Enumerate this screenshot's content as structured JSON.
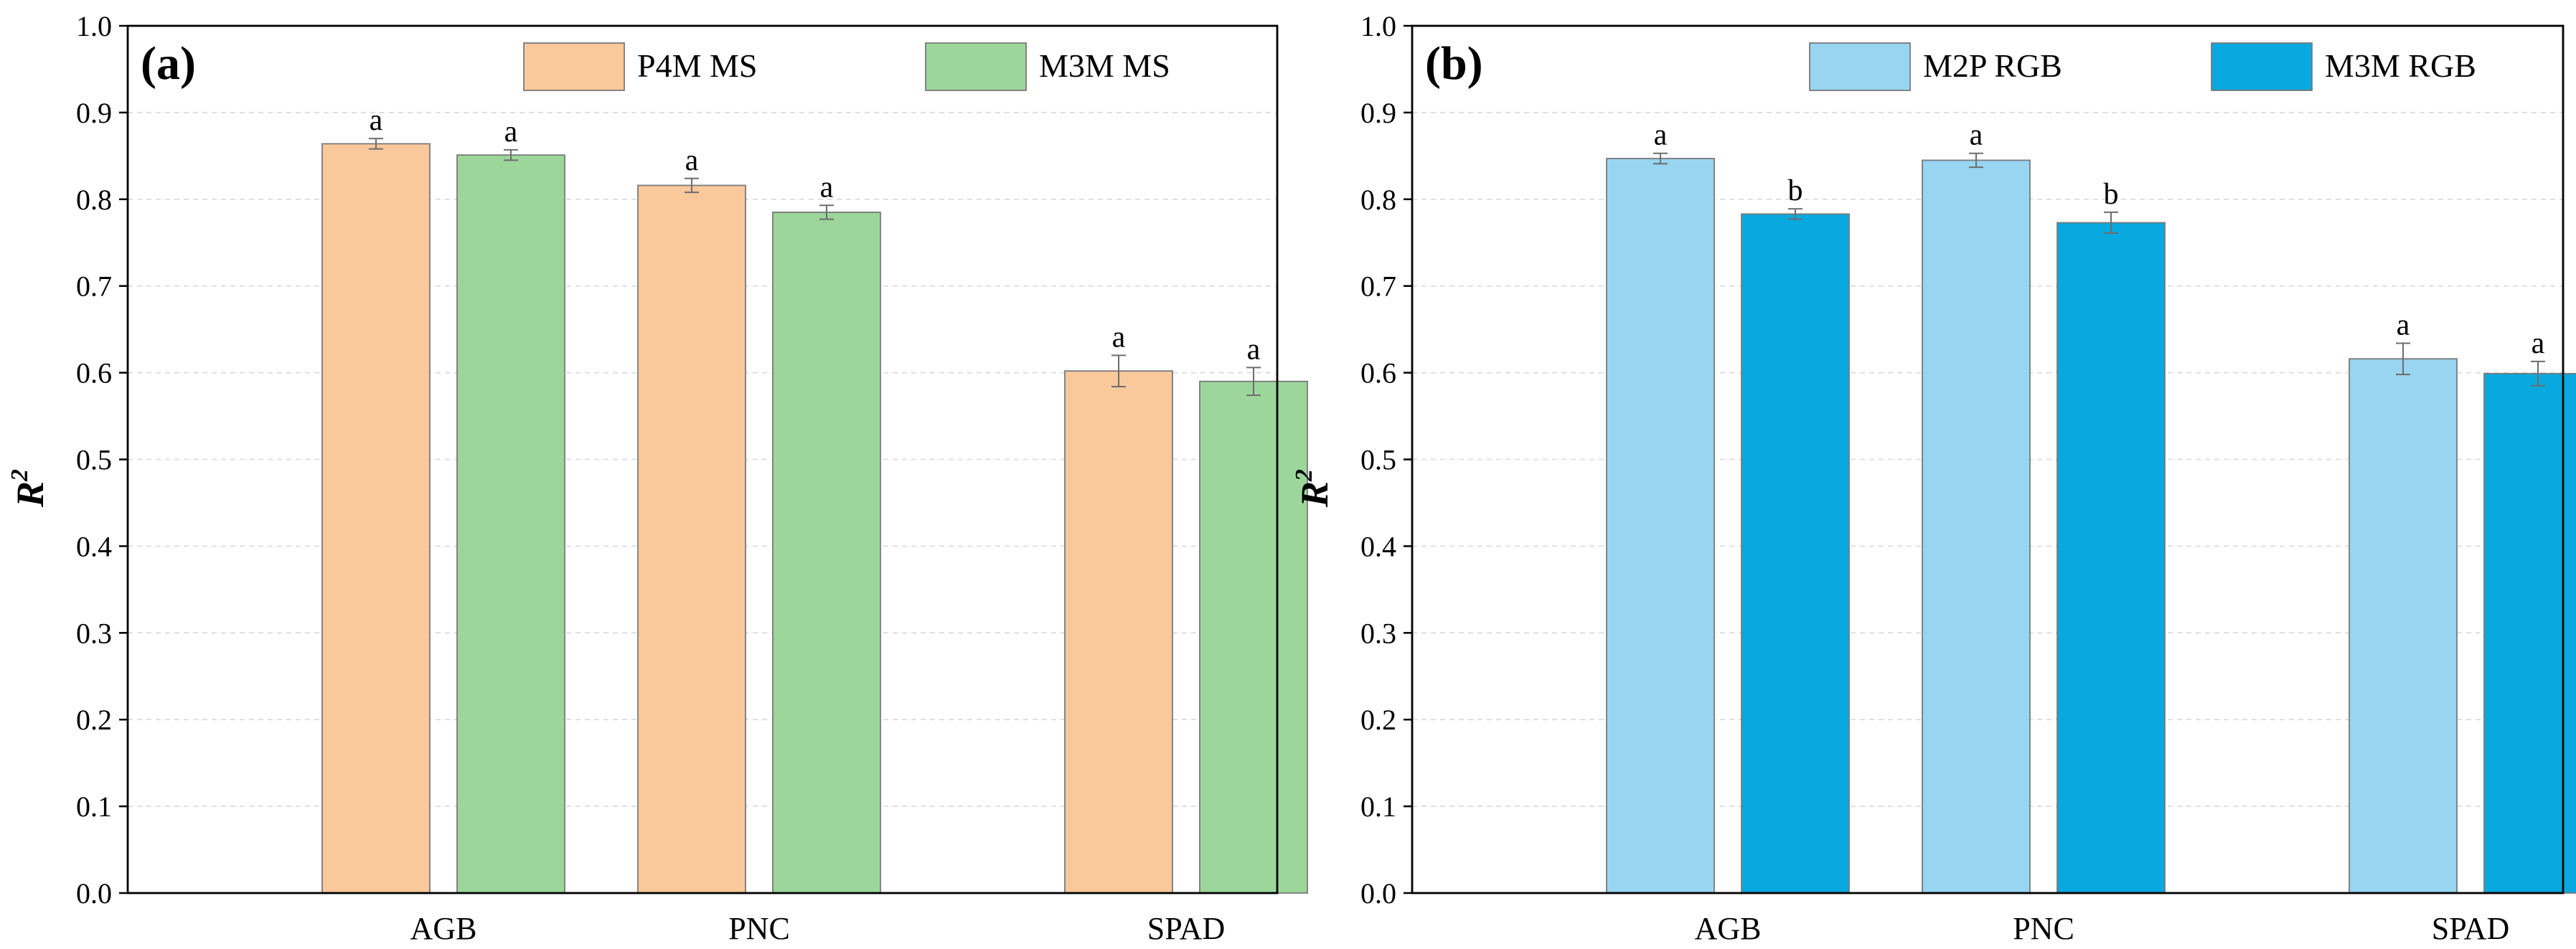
{
  "chart_data": [
    {
      "type": "bar",
      "panel_label": "(a)",
      "categories": [
        "AGB",
        "PNC",
        "SPAD"
      ],
      "ylabel": "R",
      "ylabel_superscript": "2",
      "ylim": [
        0.0,
        1.0
      ],
      "yticks": [
        "0.0",
        "0.1",
        "0.2",
        "0.3",
        "0.4",
        "0.5",
        "0.6",
        "0.7",
        "0.8",
        "0.9",
        "1.0"
      ],
      "grid": true,
      "legend_position": "top-right",
      "series": [
        {
          "name": "P4M MS",
          "color": "#F9C89B",
          "values": [
            0.864,
            0.816,
            0.602
          ],
          "errors": [
            0.006,
            0.008,
            0.018
          ],
          "labels": [
            "a",
            "a",
            "a"
          ]
        },
        {
          "name": "M3M MS",
          "color": "#9CD69B",
          "values": [
            0.851,
            0.785,
            0.59
          ],
          "errors": [
            0.006,
            0.008,
            0.016
          ],
          "labels": [
            "a",
            "a",
            "a"
          ]
        }
      ]
    },
    {
      "type": "bar",
      "panel_label": "(b)",
      "categories": [
        "AGB",
        "PNC",
        "SPAD"
      ],
      "ylabel": "R",
      "ylabel_superscript": "2",
      "ylim": [
        0.0,
        1.0
      ],
      "yticks": [
        "0.0",
        "0.1",
        "0.2",
        "0.3",
        "0.4",
        "0.5",
        "0.6",
        "0.7",
        "0.8",
        "0.9",
        "1.0"
      ],
      "grid": true,
      "legend_position": "top-right",
      "series": [
        {
          "name": "M2P RGB",
          "color": "#97D5F0",
          "values": [
            0.847,
            0.845,
            0.616
          ],
          "errors": [
            0.006,
            0.008,
            0.018
          ],
          "labels": [
            "a",
            "a",
            "a"
          ]
        },
        {
          "name": "M3M RGB",
          "color": "#08A9DF",
          "values": [
            0.783,
            0.773,
            0.599
          ],
          "errors": [
            0.006,
            0.012,
            0.014
          ],
          "labels": [
            "b",
            "b",
            "a"
          ]
        }
      ]
    }
  ]
}
